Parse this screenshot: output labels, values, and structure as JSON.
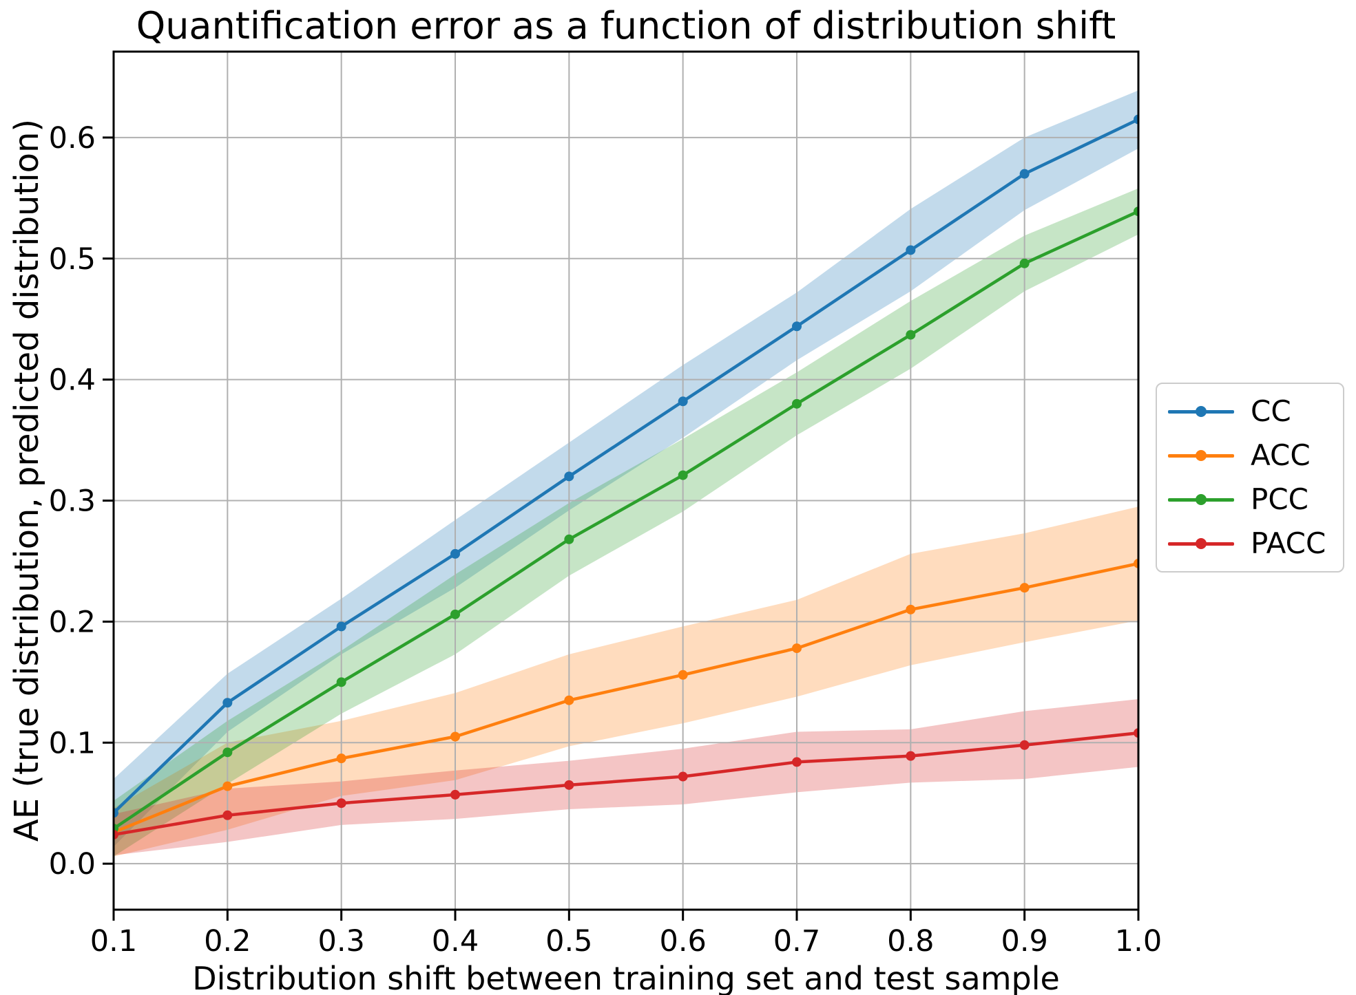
{
  "chart_data": {
    "type": "line",
    "title": "Quantification error as a function of distribution shift",
    "xlabel": "Distribution shift between training set and test sample",
    "ylabel": "AE (true distribution, predicted distribution)",
    "grid": true,
    "legend_position": "right-outside",
    "xlim": [
      0.1,
      1.0
    ],
    "ylim": [
      -0.038,
      0.671
    ],
    "x": [
      0.1,
      0.2,
      0.3,
      0.4,
      0.5,
      0.6,
      0.7,
      0.8,
      0.9,
      1.0
    ],
    "xticks": [
      0.1,
      0.2,
      0.3,
      0.4,
      0.5,
      0.6,
      0.7,
      0.8,
      0.9,
      1.0
    ],
    "xtick_labels": [
      "0.1",
      "0.2",
      "0.3",
      "0.4",
      "0.5",
      "0.6",
      "0.7",
      "0.8",
      "0.9",
      "1.0"
    ],
    "yticks": [
      0.0,
      0.1,
      0.2,
      0.3,
      0.4,
      0.5,
      0.6
    ],
    "ytick_labels": [
      "0.0",
      "0.1",
      "0.2",
      "0.3",
      "0.4",
      "0.5",
      "0.6"
    ],
    "series": [
      {
        "name": "CC",
        "color": "#1f77b4",
        "values": [
          0.042,
          0.133,
          0.196,
          0.256,
          0.32,
          0.382,
          0.444,
          0.507,
          0.57,
          0.615
        ],
        "band_halfwidth": [
          0.028,
          0.024,
          0.023,
          0.028,
          0.028,
          0.03,
          0.028,
          0.034,
          0.03,
          0.024
        ]
      },
      {
        "name": "ACC",
        "color": "#ff7f0e",
        "values": [
          0.026,
          0.064,
          0.087,
          0.105,
          0.135,
          0.156,
          0.178,
          0.21,
          0.228,
          0.248
        ],
        "band_halfwidth": [
          0.02,
          0.036,
          0.031,
          0.036,
          0.038,
          0.04,
          0.04,
          0.046,
          0.045,
          0.047
        ]
      },
      {
        "name": "PCC",
        "color": "#2ca02c",
        "values": [
          0.029,
          0.092,
          0.15,
          0.206,
          0.268,
          0.321,
          0.38,
          0.437,
          0.496,
          0.539
        ],
        "band_halfwidth": [
          0.023,
          0.026,
          0.026,
          0.033,
          0.03,
          0.03,
          0.026,
          0.028,
          0.023,
          0.019
        ]
      },
      {
        "name": "PACC",
        "color": "#d62728",
        "values": [
          0.024,
          0.04,
          0.05,
          0.057,
          0.065,
          0.072,
          0.084,
          0.089,
          0.098,
          0.108
        ],
        "band_halfwidth": [
          0.017,
          0.022,
          0.018,
          0.02,
          0.02,
          0.023,
          0.025,
          0.022,
          0.028,
          0.028
        ]
      }
    ],
    "band_opacity": 0.27,
    "colors": {
      "background": "#ffffff",
      "grid": "#b0b0b0",
      "spine": "#000000",
      "text": "#000000",
      "legend_border": "#cccccc"
    }
  }
}
